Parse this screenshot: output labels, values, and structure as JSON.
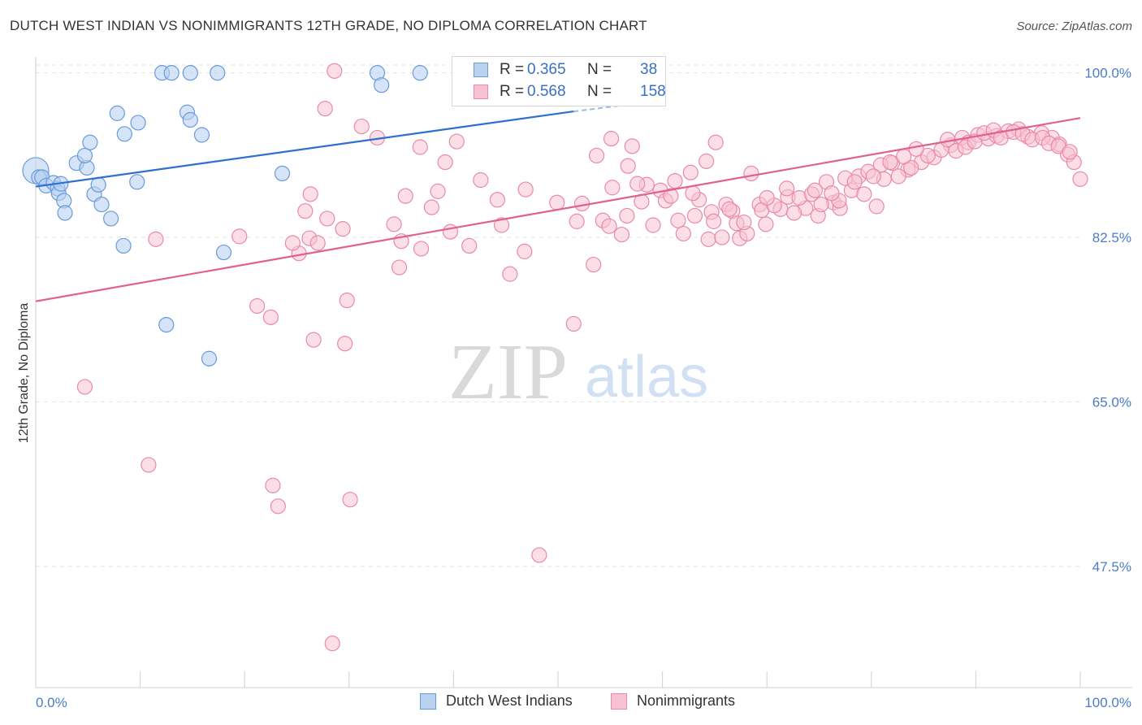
{
  "title": "DUTCH WEST INDIAN VS NONIMMIGRANTS 12TH GRADE, NO DIPLOMA CORRELATION CHART",
  "source": "Source: ZipAtlas.com",
  "watermark": {
    "part1": "ZIP",
    "part2": "atlas"
  },
  "legend": {
    "r_label": "R =",
    "n_label": "N =",
    "rows": [
      {
        "r": "0.365",
        "n": "38"
      },
      {
        "r": "0.568",
        "n": "158"
      }
    ]
  },
  "bottom_legend": [
    "Dutch West Indians",
    "Nonimmigrants"
  ],
  "colors": {
    "series1_fill": "#b9d2f2",
    "series1_stroke": "#6a9ad9",
    "series1_line": "#2f6fcf",
    "series2_fill": "#f7c2d2",
    "series2_stroke": "#e98aa8",
    "series2_line": "#e0608f",
    "tick_text": "#4a7cc9",
    "grid": "#e3e3e3"
  },
  "chart_data": {
    "type": "scatter",
    "title": "DUTCH WEST INDIAN VS NONIMMIGRANTS 12TH GRADE, NO DIPLOMA CORRELATION CHART",
    "xlabel": "",
    "ylabel": "12th Grade, No Diploma",
    "x_tick_labels": [
      "0.0%",
      "100.0%"
    ],
    "y_tick_labels": [
      "100.0%",
      "82.5%",
      "65.0%",
      "47.5%"
    ],
    "y_ticks": [
      100,
      82.5,
      65,
      47.5
    ],
    "xlim": [
      0,
      100
    ],
    "ylim": [
      34.6,
      101.7
    ],
    "grid": true,
    "legend_position": "top-center",
    "series": [
      {
        "name": "Dutch West Indians",
        "R": 0.365,
        "N": 38,
        "trend": [
          [
            0,
            87.9
          ],
          [
            51.5,
            95.9
          ]
        ],
        "trend_dashed_extension": [
          [
            51.5,
            95.9
          ],
          [
            56.5,
            96.6
          ]
        ],
        "points": [
          [
            0,
            89.6,
            16
          ],
          [
            0.3,
            88.9,
            9
          ],
          [
            0.6,
            88.9,
            9
          ],
          [
            1.0,
            88.0,
            9
          ],
          [
            1.7,
            88.3,
            9
          ],
          [
            2.1,
            87.7,
            9
          ],
          [
            2.2,
            87.2,
            9
          ],
          [
            2.7,
            86.4,
            9
          ],
          [
            2.4,
            88.2,
            9
          ],
          [
            2.8,
            85.1,
            9
          ],
          [
            3.9,
            90.4,
            9
          ],
          [
            4.9,
            89.9,
            9
          ],
          [
            4.7,
            91.2,
            9
          ],
          [
            5.2,
            92.6,
            9
          ],
          [
            5.6,
            87.1,
            9
          ],
          [
            6.0,
            88.1,
            9
          ],
          [
            6.3,
            86.0,
            9
          ],
          [
            7.2,
            84.5,
            9
          ],
          [
            8.4,
            81.6,
            9
          ],
          [
            7.8,
            95.7,
            9
          ],
          [
            8.5,
            93.5,
            9
          ],
          [
            9.8,
            94.7,
            9
          ],
          [
            9.7,
            88.4,
            9
          ],
          [
            12.1,
            100.0,
            9
          ],
          [
            12.5,
            73.2,
            9
          ],
          [
            13.0,
            100.0,
            9
          ],
          [
            14.5,
            95.8,
            9
          ],
          [
            14.8,
            100.0,
            9
          ],
          [
            14.8,
            95.0,
            9
          ],
          [
            15.9,
            93.4,
            9
          ],
          [
            16.6,
            69.6,
            9
          ],
          [
            17.4,
            100.0,
            9
          ],
          [
            18.0,
            80.9,
            9
          ],
          [
            23.6,
            89.3,
            9
          ],
          [
            32.7,
            100.0,
            9
          ],
          [
            43.8,
            100.0,
            9
          ],
          [
            33.1,
            98.7,
            9
          ],
          [
            36.8,
            100.0,
            9
          ]
        ]
      },
      {
        "name": "Nonimmigrants",
        "R": 0.568,
        "N": 158,
        "trend": [
          [
            0,
            75.7
          ],
          [
            100,
            95.2
          ]
        ],
        "points": [
          [
            4.7,
            66.6,
            9
          ],
          [
            10.8,
            58.3,
            9
          ],
          [
            11.5,
            82.3,
            9
          ],
          [
            19.5,
            82.6,
            9
          ],
          [
            21.2,
            75.2,
            9
          ],
          [
            22.5,
            74.0,
            9
          ],
          [
            22.7,
            56.1,
            9
          ],
          [
            23.2,
            53.9,
            9
          ],
          [
            25.2,
            80.8,
            9
          ],
          [
            25.8,
            85.3,
            9
          ],
          [
            26.2,
            82.4,
            9
          ],
          [
            26.3,
            87.1,
            9
          ],
          [
            27.0,
            81.9,
            9
          ],
          [
            27.9,
            84.5,
            9
          ],
          [
            27.7,
            96.2,
            9
          ],
          [
            28.4,
            39.3,
            9
          ],
          [
            28.6,
            100.2,
            9
          ],
          [
            29.4,
            83.4,
            9
          ],
          [
            29.8,
            75.8,
            9
          ],
          [
            31.2,
            94.3,
            9
          ],
          [
            32.7,
            93.1,
            9
          ],
          [
            34.3,
            83.9,
            9
          ],
          [
            35.0,
            82.1,
            9
          ],
          [
            35.4,
            86.9,
            9
          ],
          [
            36.9,
            81.3,
            9
          ],
          [
            38.5,
            87.4,
            9
          ],
          [
            39.2,
            90.5,
            9
          ],
          [
            40.3,
            92.7,
            9
          ],
          [
            42.6,
            88.6,
            9
          ],
          [
            44.6,
            83.8,
            9
          ],
          [
            46.9,
            87.6,
            9
          ],
          [
            48.5,
            100.1,
            9
          ],
          [
            48.2,
            48.7,
            9
          ],
          [
            50.5,
            100.0,
            9
          ],
          [
            51.5,
            73.3,
            9
          ],
          [
            53.4,
            79.6,
            9
          ],
          [
            54.3,
            84.3,
            9
          ],
          [
            55.1,
            93.0,
            9
          ],
          [
            56.6,
            84.8,
            9
          ],
          [
            57.1,
            92.2,
            9
          ],
          [
            58.5,
            88.1,
            9
          ],
          [
            59.8,
            87.5,
            9
          ],
          [
            61.2,
            88.5,
            9
          ],
          [
            62.0,
            82.9,
            9
          ],
          [
            62.7,
            89.4,
            9
          ],
          [
            63.1,
            84.8,
            9
          ],
          [
            64.2,
            90.6,
            9
          ],
          [
            64.7,
            85.2,
            9
          ],
          [
            65.1,
            92.6,
            9
          ],
          [
            66.1,
            86.0,
            9
          ],
          [
            66.7,
            85.3,
            9
          ],
          [
            67.4,
            82.4,
            9
          ],
          [
            68.5,
            89.3,
            9
          ],
          [
            69.3,
            86.0,
            9
          ],
          [
            69.9,
            83.9,
            9
          ],
          [
            71.3,
            85.5,
            9
          ],
          [
            72.0,
            86.8,
            9
          ],
          [
            73.7,
            85.6,
            9
          ],
          [
            74.9,
            84.8,
            9
          ],
          [
            75.7,
            88.4,
            9
          ],
          [
            76.4,
            86.2,
            9
          ],
          [
            77.0,
            85.6,
            9
          ],
          [
            78.1,
            87.5,
            9
          ],
          [
            79.3,
            87.1,
            9
          ],
          [
            80.5,
            85.8,
            9
          ],
          [
            81.2,
            88.7,
            9
          ],
          [
            82.0,
            90.4,
            9
          ],
          [
            83.5,
            89.7,
            9
          ],
          [
            84.8,
            90.5,
            9
          ],
          [
            86.0,
            91.0,
            9
          ],
          [
            87.6,
            92.3,
            9
          ],
          [
            88.7,
            93.1,
            9
          ],
          [
            89.3,
            92.6,
            9
          ],
          [
            90.2,
            93.4,
            9
          ],
          [
            91.2,
            93.0,
            9
          ],
          [
            92.0,
            93.3,
            9
          ],
          [
            93.1,
            93.8,
            9
          ],
          [
            94.1,
            94.0,
            9
          ],
          [
            95.0,
            93.2,
            9
          ],
          [
            96.3,
            93.6,
            9
          ],
          [
            97.3,
            93.1,
            9
          ],
          [
            98.0,
            92.4,
            9
          ],
          [
            98.8,
            91.3,
            9
          ],
          [
            99.4,
            90.5,
            9
          ],
          [
            100.0,
            88.7,
            9
          ],
          [
            30.1,
            54.6,
            9
          ],
          [
            24.6,
            81.9,
            9
          ],
          [
            26.6,
            71.6,
            9
          ],
          [
            29.6,
            71.2,
            9
          ],
          [
            34.8,
            79.3,
            9
          ],
          [
            36.8,
            92.1,
            9
          ],
          [
            37.9,
            85.7,
            9
          ],
          [
            39.7,
            83.1,
            9
          ],
          [
            41.5,
            81.6,
            9
          ],
          [
            44.2,
            86.5,
            9
          ],
          [
            45.4,
            78.6,
            9
          ],
          [
            46.8,
            81.0,
            9
          ],
          [
            49.9,
            86.2,
            9
          ],
          [
            51.8,
            84.2,
            9
          ],
          [
            53.7,
            91.2,
            9
          ],
          [
            55.2,
            87.8,
            9
          ],
          [
            56.7,
            90.1,
            9
          ],
          [
            57.6,
            88.2,
            9
          ],
          [
            59.1,
            83.8,
            9
          ],
          [
            60.3,
            86.4,
            9
          ],
          [
            61.5,
            84.3,
            9
          ],
          [
            63.5,
            86.5,
            9
          ],
          [
            64.4,
            82.3,
            9
          ],
          [
            65.7,
            82.5,
            9
          ],
          [
            67.1,
            84.0,
            9
          ],
          [
            68.1,
            82.9,
            9
          ],
          [
            69.5,
            85.4,
            9
          ],
          [
            70.7,
            85.9,
            9
          ],
          [
            71.9,
            87.7,
            9
          ],
          [
            73.1,
            86.7,
            9
          ],
          [
            74.3,
            87.1,
            9
          ],
          [
            75.2,
            86.0,
            9
          ],
          [
            76.9,
            86.4,
            9
          ],
          [
            77.5,
            88.8,
            9
          ],
          [
            78.8,
            89.0,
            9
          ],
          [
            79.7,
            89.5,
            9
          ],
          [
            80.9,
            90.2,
            9
          ],
          [
            82.6,
            89.0,
            9
          ],
          [
            83.8,
            89.9,
            9
          ],
          [
            85.4,
            91.2,
            9
          ],
          [
            86.7,
            91.8,
            9
          ],
          [
            87.3,
            92.9,
            9
          ],
          [
            88.1,
            91.7,
            9
          ],
          [
            89.0,
            92.1,
            9
          ],
          [
            89.9,
            92.7,
            9
          ],
          [
            90.8,
            93.6,
            9
          ],
          [
            91.7,
            93.9,
            9
          ],
          [
            92.4,
            93.1,
            9
          ],
          [
            93.6,
            93.7,
            9
          ],
          [
            94.5,
            93.5,
            9
          ],
          [
            95.4,
            92.9,
            9
          ],
          [
            96.4,
            93.1,
            9
          ],
          [
            97.0,
            92.5,
            9
          ],
          [
            97.9,
            92.2,
            9
          ],
          [
            99.0,
            91.6,
            9
          ],
          [
            52.3,
            86.1,
            9
          ],
          [
            54.9,
            83.7,
            9
          ],
          [
            56.1,
            82.8,
            9
          ],
          [
            58.0,
            86.3,
            9
          ],
          [
            60.8,
            86.9,
            9
          ],
          [
            62.9,
            87.2,
            9
          ],
          [
            64.9,
            84.2,
            9
          ],
          [
            66.4,
            85.5,
            9
          ],
          [
            67.8,
            84.1,
            9
          ],
          [
            70.0,
            86.7,
            9
          ],
          [
            72.6,
            85.1,
            9
          ],
          [
            74.6,
            87.5,
            9
          ],
          [
            76.2,
            87.2,
            9
          ],
          [
            78.4,
            88.4,
            9
          ],
          [
            80.2,
            89.0,
            9
          ],
          [
            81.8,
            90.5,
            9
          ],
          [
            83.1,
            91.1,
            9
          ],
          [
            84.3,
            91.9,
            9
          ]
        ]
      }
    ]
  }
}
